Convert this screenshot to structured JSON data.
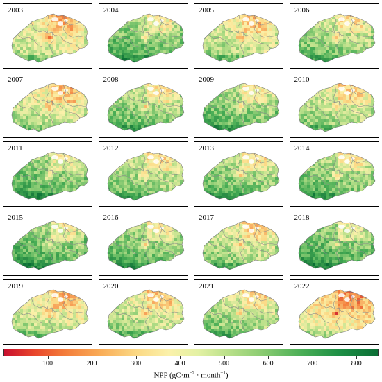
{
  "panels": [
    {
      "year": "2003",
      "level": 0.48
    },
    {
      "year": "2004",
      "level": 0.66
    },
    {
      "year": "2005",
      "level": 0.52
    },
    {
      "year": "2006",
      "level": 0.6
    },
    {
      "year": "2007",
      "level": 0.5
    },
    {
      "year": "2008",
      "level": 0.62
    },
    {
      "year": "2009",
      "level": 0.64
    },
    {
      "year": "2010",
      "level": 0.55
    },
    {
      "year": "2011",
      "level": 0.67
    },
    {
      "year": "2012",
      "level": 0.6
    },
    {
      "year": "2013",
      "level": 0.63
    },
    {
      "year": "2014",
      "level": 0.64
    },
    {
      "year": "2015",
      "level": 0.68
    },
    {
      "year": "2016",
      "level": 0.66
    },
    {
      "year": "2017",
      "level": 0.56
    },
    {
      "year": "2018",
      "level": 0.7
    },
    {
      "year": "2019",
      "level": 0.5
    },
    {
      "year": "2020",
      "level": 0.54
    },
    {
      "year": "2021",
      "level": 0.58
    },
    {
      "year": "2022",
      "level": 0.4
    }
  ],
  "colorbar": {
    "ticks": [
      "100",
      "200",
      "300",
      "400",
      "500",
      "600",
      "700",
      "800"
    ],
    "min": 0,
    "max": 850,
    "title": "NPP (gC·m",
    "title_sup1": "−2",
    "title_mid": " · month",
    "title_sup2": "−1",
    "title_end": ")"
  },
  "colors": {
    "low": "#c8102e",
    "mid": "#fbf1aa",
    "high": "#0b6e35"
  }
}
